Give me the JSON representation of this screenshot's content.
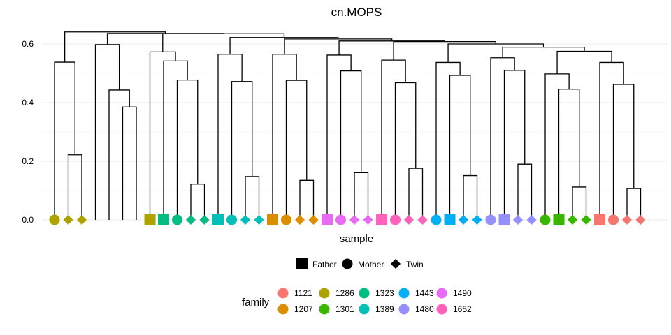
{
  "chart_data": {
    "type": "dendrogram",
    "title": "cn.MOPS",
    "xlabel": "sample",
    "ylabel": "",
    "ylim": [
      0,
      0.65
    ],
    "yticks": [
      "0.0",
      "0.2",
      "0.4",
      "0.6"
    ],
    "grid": "horizontal",
    "legend_shape": {
      "title": "",
      "items": [
        {
          "label": "Father",
          "shape": "square"
        },
        {
          "label": "Mother",
          "shape": "circle"
        },
        {
          "label": "Twin",
          "shape": "diamond"
        }
      ]
    },
    "legend_color": {
      "title": "family",
      "items": [
        {
          "label": "1121",
          "color": "#F8766D"
        },
        {
          "label": "1207",
          "color": "#DB8E00"
        },
        {
          "label": "1286",
          "color": "#AEA200"
        },
        {
          "label": "1301",
          "color": "#39B600"
        },
        {
          "label": "1323",
          "color": "#00BD81"
        },
        {
          "label": "1389",
          "color": "#00C0B8"
        },
        {
          "label": "1443",
          "color": "#00B0F6"
        },
        {
          "label": "1480",
          "color": "#9590FF"
        },
        {
          "label": "1490",
          "color": "#E76BF3"
        },
        {
          "label": "1652",
          "color": "#FF62BC"
        }
      ]
    },
    "leaves": [
      {
        "shape": "circle",
        "family": "1286"
      },
      {
        "shape": "diamond",
        "family": "1286"
      },
      {
        "shape": "diamond",
        "family": "1286"
      },
      {
        "shape": null,
        "family": null
      },
      {
        "shape": null,
        "family": null
      },
      {
        "shape": null,
        "family": null
      },
      {
        "shape": null,
        "family": null
      },
      {
        "shape": "square",
        "family": "1286"
      },
      {
        "shape": "square",
        "family": "1323"
      },
      {
        "shape": "circle",
        "family": "1323"
      },
      {
        "shape": "diamond",
        "family": "1323"
      },
      {
        "shape": "diamond",
        "family": "1323"
      },
      {
        "shape": "square",
        "family": "1389"
      },
      {
        "shape": "circle",
        "family": "1389"
      },
      {
        "shape": "diamond",
        "family": "1389"
      },
      {
        "shape": "diamond",
        "family": "1389"
      },
      {
        "shape": "square",
        "family": "1207"
      },
      {
        "shape": "circle",
        "family": "1207"
      },
      {
        "shape": "diamond",
        "family": "1207"
      },
      {
        "shape": "diamond",
        "family": "1207"
      },
      {
        "shape": "square",
        "family": "1490"
      },
      {
        "shape": "circle",
        "family": "1490"
      },
      {
        "shape": "diamond",
        "family": "1490"
      },
      {
        "shape": "diamond",
        "family": "1490"
      },
      {
        "shape": "square",
        "family": "1652"
      },
      {
        "shape": "circle",
        "family": "1652"
      },
      {
        "shape": "diamond",
        "family": "1652"
      },
      {
        "shape": "diamond",
        "family": "1652"
      },
      {
        "shape": "circle",
        "family": "1443"
      },
      {
        "shape": "square",
        "family": "1443"
      },
      {
        "shape": "diamond",
        "family": "1443"
      },
      {
        "shape": "diamond",
        "family": "1443"
      },
      {
        "shape": "circle",
        "family": "1480"
      },
      {
        "shape": "square",
        "family": "1480"
      },
      {
        "shape": "diamond",
        "family": "1480"
      },
      {
        "shape": "diamond",
        "family": "1480"
      },
      {
        "shape": "circle",
        "family": "1301"
      },
      {
        "shape": "square",
        "family": "1301"
      },
      {
        "shape": "diamond",
        "family": "1301"
      },
      {
        "shape": "diamond",
        "family": "1301"
      },
      {
        "shape": "square",
        "family": "1121"
      },
      {
        "shape": "circle",
        "family": "1121"
      },
      {
        "shape": "diamond",
        "family": "1121"
      },
      {
        "shape": "diamond",
        "family": "1121"
      }
    ],
    "merges": [
      {
        "left": 1,
        "right": 2,
        "height": 0.222
      },
      {
        "left": 0,
        "right": "m0",
        "height": 0.538
      },
      {
        "left": 5,
        "right": 6,
        "height": 0.385
      },
      {
        "left": 4,
        "right": "m2",
        "height": 0.443
      },
      {
        "left": 3,
        "right": "m3",
        "height": 0.598
      },
      {
        "left": 10,
        "right": 11,
        "height": 0.122
      },
      {
        "left": 9,
        "right": "m5",
        "height": 0.477
      },
      {
        "left": 8,
        "right": "m6",
        "height": 0.542
      },
      {
        "left": 7,
        "right": "m7",
        "height": 0.573
      },
      {
        "left": 14,
        "right": 15,
        "height": 0.148
      },
      {
        "left": 13,
        "right": "m9",
        "height": 0.472
      },
      {
        "left": 12,
        "right": "m10",
        "height": 0.565
      },
      {
        "left": 18,
        "right": 19,
        "height": 0.135
      },
      {
        "left": 17,
        "right": "m12",
        "height": 0.476
      },
      {
        "left": 16,
        "right": "m13",
        "height": 0.565
      },
      {
        "left": 22,
        "right": 23,
        "height": 0.161
      },
      {
        "left": 21,
        "right": "m15",
        "height": 0.508
      },
      {
        "left": 20,
        "right": "m16",
        "height": 0.562
      },
      {
        "left": 26,
        "right": 27,
        "height": 0.176
      },
      {
        "left": 25,
        "right": "m18",
        "height": 0.468
      },
      {
        "left": 24,
        "right": "m19",
        "height": 0.545
      },
      {
        "left": 30,
        "right": 31,
        "height": 0.151
      },
      {
        "left": 29,
        "right": "m21",
        "height": 0.493
      },
      {
        "left": 28,
        "right": "m22",
        "height": 0.537
      },
      {
        "left": 34,
        "right": 35,
        "height": 0.19
      },
      {
        "left": 33,
        "right": "m24",
        "height": 0.51
      },
      {
        "left": 32,
        "right": "m25",
        "height": 0.553
      },
      {
        "left": 38,
        "right": 39,
        "height": 0.112
      },
      {
        "left": 37,
        "right": "m27",
        "height": 0.446
      },
      {
        "left": 36,
        "right": "m28",
        "height": 0.498
      },
      {
        "left": 42,
        "right": 43,
        "height": 0.107
      },
      {
        "left": 41,
        "right": "m30",
        "height": 0.462
      },
      {
        "left": 40,
        "right": "m31",
        "height": 0.537
      },
      {
        "left": "m29",
        "right": "m32",
        "height": 0.575
      },
      {
        "left": "m26",
        "right": "m33",
        "height": 0.589
      },
      {
        "left": "m23",
        "right": "m34",
        "height": 0.6
      },
      {
        "left": "m20",
        "right": "m35",
        "height": 0.608
      },
      {
        "left": "m17",
        "right": "m36",
        "height": 0.61
      },
      {
        "left": "m14",
        "right": "m37",
        "height": 0.617
      },
      {
        "left": "m11",
        "right": "m38",
        "height": 0.622
      },
      {
        "left": "m8",
        "right": "m39",
        "height": 0.635
      },
      {
        "left": "m4",
        "right": "m40",
        "height": 0.636
      },
      {
        "left": "m1",
        "right": "m41",
        "height": 0.641
      }
    ]
  }
}
